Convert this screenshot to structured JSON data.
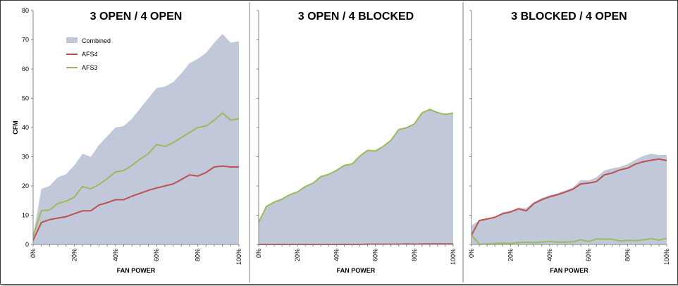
{
  "chart_data": [
    {
      "type": "area",
      "title": "3 OPEN / 4 OPEN",
      "xlabel": "FAN POWER",
      "ylabel": "CFM",
      "ylim": [
        0,
        80
      ],
      "y_ticks": [
        "0",
        "10",
        "20",
        "30",
        "40",
        "50",
        "60",
        "70",
        "80"
      ],
      "x_ticks": [
        "0%",
        "20%",
        "40%",
        "60%",
        "80%",
        "100%"
      ],
      "grid": false,
      "legend": "top-left",
      "x": [
        0,
        4,
        8,
        12,
        16,
        20,
        24,
        28,
        32,
        36,
        40,
        44,
        48,
        52,
        56,
        60,
        64,
        68,
        72,
        76,
        80,
        84,
        88,
        92,
        96,
        100
      ],
      "series": [
        {
          "name": "Combined",
          "kind": "area",
          "color": "#c0c8d9",
          "values": [
            3,
            19,
            20,
            23,
            24,
            27,
            31,
            30,
            34,
            37,
            40,
            40.5,
            43,
            46.5,
            50,
            53.5,
            54,
            55.5,
            58.5,
            62,
            63.5,
            65.5,
            69,
            72,
            69,
            69.5
          ]
        },
        {
          "name": "AFS4",
          "kind": "line",
          "color": "#c0504d",
          "values": [
            1.5,
            7.5,
            8.5,
            9,
            9.5,
            10.5,
            11.5,
            11.5,
            13.5,
            14.3,
            15.3,
            15.3,
            16.5,
            17.5,
            18.5,
            19.3,
            20,
            20.7,
            22.2,
            23.8,
            23.4,
            24.6,
            26.5,
            26.8,
            26.5,
            26.5
          ]
        },
        {
          "name": "AFS3",
          "kind": "line",
          "color": "#9bbb59",
          "values": [
            3,
            11.5,
            11.8,
            14,
            14.8,
            16.2,
            19.8,
            19,
            20.5,
            22.5,
            24.8,
            25.3,
            27,
            29.2,
            31,
            34.2,
            33.5,
            34.8,
            36.5,
            38.3,
            40,
            40.5,
            42.5,
            45,
            42.5,
            43
          ]
        }
      ]
    },
    {
      "type": "area",
      "title": "3 OPEN / 4 BLOCKED",
      "xlabel": "FAN POWER",
      "ylim": [
        0,
        80
      ],
      "x_ticks": [
        "0%",
        "20%",
        "40%",
        "60%",
        "80%",
        "100%"
      ],
      "grid": false,
      "x": [
        0,
        4,
        8,
        12,
        16,
        20,
        24,
        28,
        32,
        36,
        40,
        44,
        48,
        52,
        56,
        60,
        64,
        68,
        72,
        76,
        80,
        84,
        88,
        92,
        96,
        100
      ],
      "series": [
        {
          "kind": "area",
          "color": "#c0c8d9",
          "values": [
            7.5,
            13,
            14.5,
            15.5,
            17,
            18,
            19.8,
            21,
            23.2,
            24,
            25.3,
            27,
            27.5,
            30.2,
            32.2,
            32,
            33.5,
            35.6,
            39.3,
            39.9,
            41.2,
            45,
            46.2,
            45.1,
            44.5,
            45
          ]
        },
        {
          "kind": "line",
          "color": "#9bbb59",
          "values": [
            7.5,
            13,
            14.5,
            15.5,
            17,
            18,
            19.8,
            21,
            23.2,
            24,
            25.3,
            27,
            27.5,
            30.2,
            32.2,
            32,
            33.5,
            35.6,
            39.3,
            39.9,
            41.2,
            45,
            46.2,
            45.1,
            44.5,
            45
          ]
        },
        {
          "kind": "line",
          "color": "#c0504d",
          "values": [
            0,
            0,
            0,
            0,
            0,
            0,
            0,
            0,
            0,
            0,
            0,
            0,
            0,
            0,
            0.1,
            0.1,
            0.1,
            0.1,
            0.1,
            0.2,
            0.1,
            0.2,
            0.2,
            0.2,
            0.2,
            0.2
          ]
        }
      ]
    },
    {
      "type": "area",
      "title": "3 BLOCKED / 4 OPEN",
      "xlabel": "FAN POWER",
      "ylim": [
        0,
        80
      ],
      "x_ticks": [
        "0%",
        "20%",
        "40%",
        "60%",
        "80%",
        "100%"
      ],
      "grid": false,
      "x": [
        0,
        4,
        8,
        12,
        16,
        20,
        24,
        28,
        32,
        36,
        40,
        44,
        48,
        52,
        56,
        60,
        64,
        68,
        72,
        76,
        80,
        84,
        88,
        92,
        96,
        100
      ],
      "series": [
        {
          "kind": "area",
          "color": "#c0c8d9",
          "values": [
            6.5,
            8.3,
            9,
            9.5,
            11,
            11.5,
            12.5,
            12.4,
            14.5,
            15.9,
            16.8,
            17.5,
            18.5,
            19.5,
            22,
            21.9,
            23,
            25.3,
            26,
            26.5,
            27.5,
            29,
            30.3,
            31,
            30.6,
            30.6
          ]
        },
        {
          "kind": "line",
          "color": "#c0504d",
          "values": [
            3.2,
            8.2,
            8.7,
            9.3,
            10.5,
            11.1,
            12.2,
            11.5,
            14,
            15.3,
            16.3,
            17,
            17.9,
            18.9,
            20.7,
            21,
            21.5,
            23.8,
            24.4,
            25.5,
            26.1,
            27.5,
            28.3,
            28.8,
            29.2,
            28.7
          ]
        },
        {
          "kind": "line",
          "color": "#9bbb59",
          "values": [
            3.2,
            0.1,
            0.2,
            0.3,
            0.4,
            0.3,
            0.6,
            0.8,
            0.6,
            0.8,
            1,
            0.8,
            0.8,
            0.9,
            1.6,
            1,
            1.9,
            1.8,
            1.8,
            1.2,
            1.4,
            1.3,
            1.6,
            2,
            1.5,
            2.1
          ]
        }
      ]
    }
  ]
}
